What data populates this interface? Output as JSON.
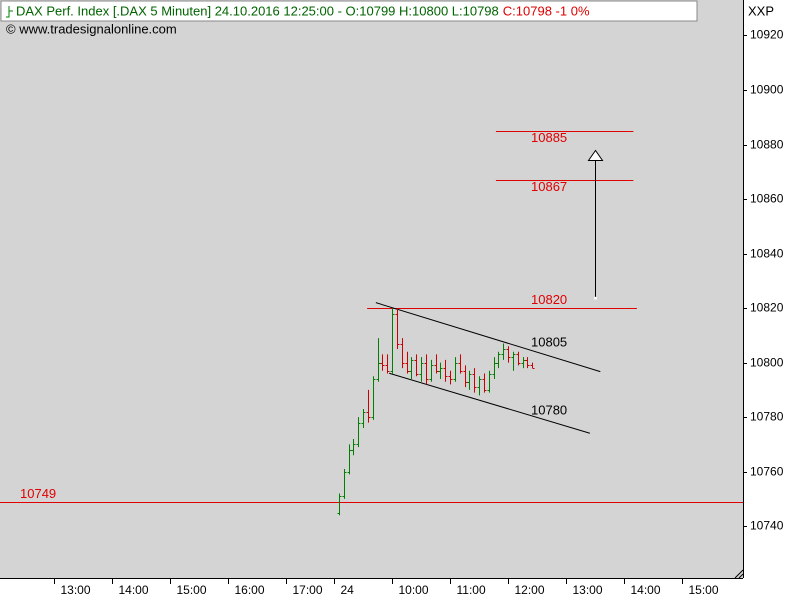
{
  "chart_data": {
    "type": "ohlc",
    "title": "DAX Perf. Index [.DAX  5 Minuten] 24.10.2016 12:25:00 - O:10799 H:10800 L:10798",
    "title_change": "C:10798 -1 0%",
    "copyright": "© www.tradesignalonline.com",
    "y_axis_label": "XXP",
    "up_color": "#008000",
    "down_color": "#cc0000",
    "x": [
      9.0833,
      9.1667,
      9.25,
      9.3333,
      9.4167,
      9.5,
      9.5833,
      9.6667,
      9.75,
      9.8333,
      9.9167,
      10,
      10.0833,
      10.1667,
      10.25,
      10.3333,
      10.4167,
      10.5,
      10.5833,
      10.6667,
      10.75,
      10.8333,
      10.9167,
      11,
      11.0833,
      11.1667,
      11.25,
      11.3333,
      11.4167,
      11.5,
      11.5833,
      11.6667,
      11.75,
      11.8333,
      11.9167,
      12,
      12.0833,
      12.1667,
      12.25,
      12.3333,
      12.4167
    ],
    "open": [
      10745,
      10751,
      10760,
      10768,
      10770,
      10778,
      10782,
      10780,
      10794,
      10800,
      10799,
      10797,
      10818,
      10807,
      10800,
      10797,
      10801,
      10796,
      10800,
      10794,
      10799,
      10797,
      10798,
      10795,
      10794,
      10800,
      10797,
      10793,
      10796,
      10791,
      10794,
      10790,
      10796,
      10800,
      10803,
      10805,
      10802,
      10803,
      10800,
      10801,
      10799
    ],
    "high": [
      10752,
      10761,
      10770,
      10772,
      10780,
      10783,
      10790,
      10795,
      10809,
      10803,
      10803,
      10820,
      10820,
      10809,
      10804,
      10802,
      10803,
      10802,
      10803,
      10801,
      10803,
      10800,
      10801,
      10797,
      10802,
      10803,
      10799,
      10797,
      10798,
      10795,
      10796,
      10797,
      10802,
      10804,
      10807,
      10806,
      10804,
      10804,
      10802,
      10802,
      10800
    ],
    "low": [
      10744,
      10750,
      10759,
      10766,
      10769,
      10776,
      10778,
      10779,
      10793,
      10797,
      10796,
      10796,
      10805,
      10798,
      10796,
      10794,
      10795,
      10793,
      10792,
      10793,
      10796,
      10794,
      10793,
      10792,
      10793,
      10796,
      10791,
      10790,
      10789,
      10788,
      10789,
      10789,
      10794,
      10798,
      10801,
      10800,
      10797,
      10799,
      10798,
      10798,
      10798
    ],
    "close": [
      10751,
      10760,
      10768,
      10770,
      10778,
      10782,
      10780,
      10794,
      10800,
      10799,
      10797,
      10818,
      10807,
      10800,
      10797,
      10801,
      10796,
      10800,
      10794,
      10799,
      10797,
      10798,
      10795,
      10794,
      10800,
      10797,
      10793,
      10796,
      10791,
      10794,
      10790,
      10796,
      10800,
      10803,
      10805,
      10802,
      10803,
      10800,
      10801,
      10799,
      10798
    ],
    "xlim": [
      3.24,
      16.05
    ],
    "ylim": [
      10721,
      10933
    ],
    "yticks": [
      10740,
      10760,
      10780,
      10800,
      10820,
      10840,
      10860,
      10880,
      10900,
      10920
    ],
    "xticks": [
      {
        "value": 4.17,
        "label": "13:00"
      },
      {
        "value": 5.17,
        "label": "14:00"
      },
      {
        "value": 6.17,
        "label": "15:00"
      },
      {
        "value": 7.17,
        "label": "16:00"
      },
      {
        "value": 8.17,
        "label": "17:00"
      },
      {
        "value": 9,
        "label": "24"
      },
      {
        "value": 10,
        "label": "10:00"
      },
      {
        "value": 11,
        "label": "11:00"
      },
      {
        "value": 12,
        "label": "12:00"
      },
      {
        "value": 13,
        "label": "13:00"
      },
      {
        "value": 14,
        "label": "14:00"
      },
      {
        "value": 15,
        "label": "15:00"
      }
    ],
    "levels": [
      {
        "value": 10885,
        "x": [
          11.79,
          14.16
        ]
      },
      {
        "value": 10867,
        "x": [
          11.79,
          14.16
        ]
      },
      {
        "value": 10820,
        "x": [
          9.57,
          14.22
        ]
      },
      {
        "value": 10749,
        "x": [
          3.24,
          16.05
        ]
      }
    ],
    "level_color": "#e00000",
    "trendlines": [
      {
        "x": [
          9.72,
          13.59
        ],
        "y": [
          10822,
          10796.7
        ]
      },
      {
        "x": [
          9.95,
          13.41
        ],
        "y": [
          10796.1,
          10774.1
        ]
      }
    ],
    "channel_labels": [
      10805,
      10780
    ],
    "arrow": {
      "x": 13.5,
      "y": [
        10823.6,
        10877.8
      ]
    }
  }
}
